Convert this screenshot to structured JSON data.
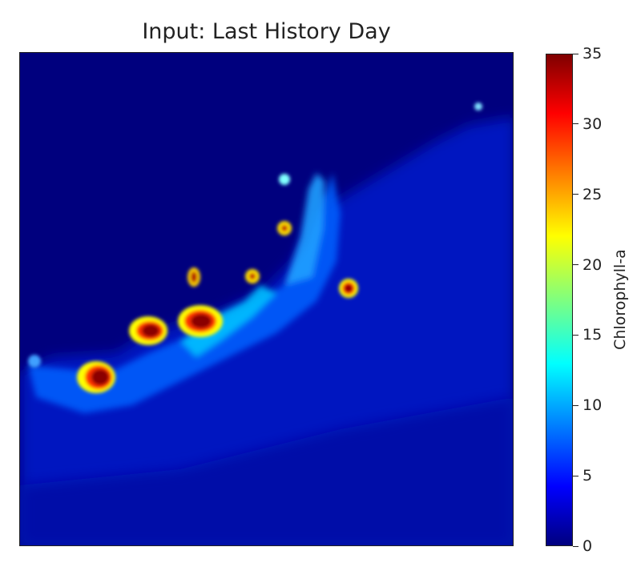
{
  "chart_data": {
    "type": "heatmap",
    "title": "Input: Last History Day",
    "colorbar": {
      "label": "Chlorophyll-a",
      "min": 0,
      "max": 35,
      "ticks": [
        0,
        5,
        10,
        15,
        20,
        25,
        30,
        35
      ],
      "colormap": "jet"
    },
    "x_axis_visible": false,
    "y_axis_visible": false,
    "background_value": 0.5,
    "bloom_patches": [
      {
        "value": 35,
        "note": "hotspot left"
      },
      {
        "value": 35,
        "note": "hotspot centre-left"
      },
      {
        "value": 35,
        "note": "hotspot centre"
      },
      {
        "value": 33,
        "note": "hotspot right"
      },
      {
        "value": 28,
        "note": "small hotspot upper"
      }
    ]
  },
  "colors": {
    "low": "#000080",
    "high": "#800000"
  }
}
